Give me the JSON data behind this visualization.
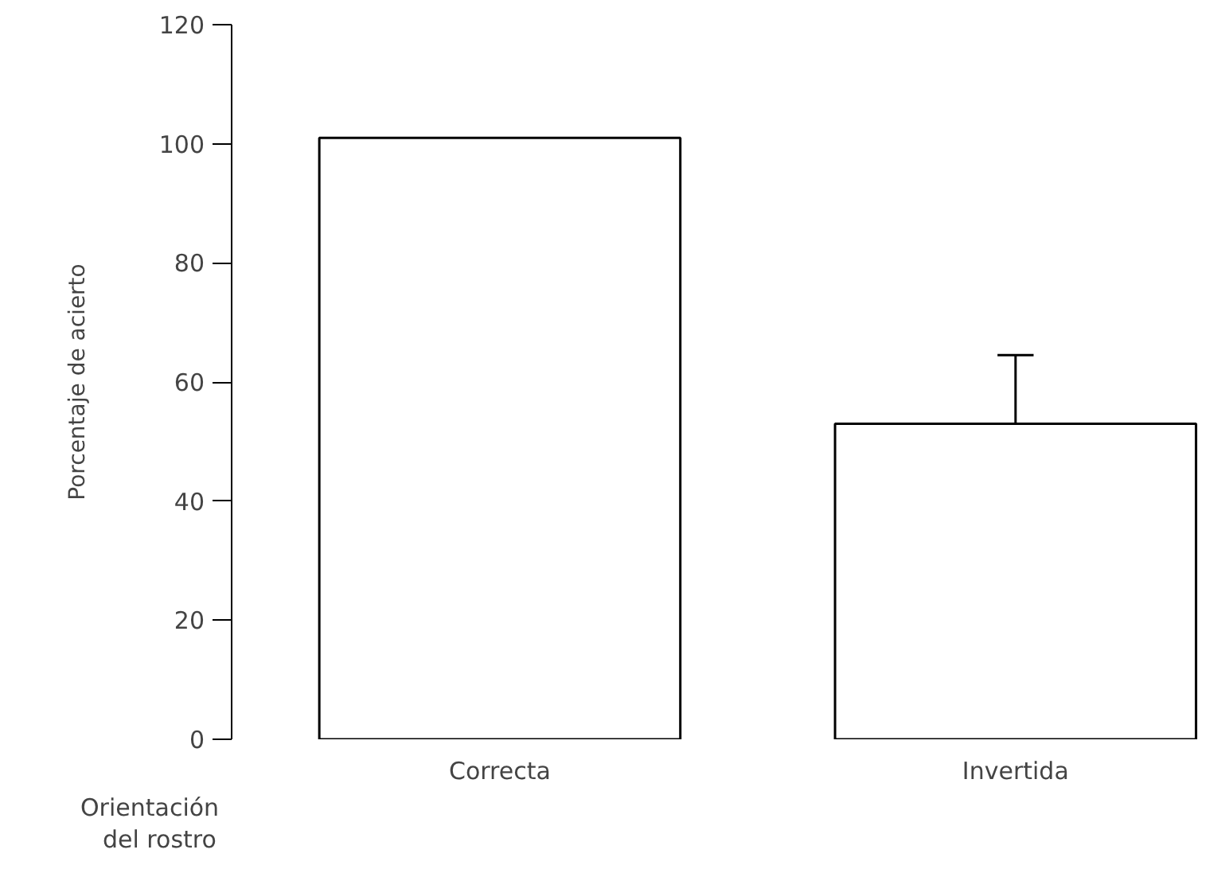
{
  "chart_data": {
    "type": "bar",
    "categories": [
      "Correcta",
      "Invertida"
    ],
    "values": [
      101,
      53
    ],
    "errors": [
      null,
      [
        53,
        64.5
      ]
    ],
    "color": "#ffffff",
    "ylabel": "Porcentaje de acierto",
    "xlabel": "Orientación\ndel rostro",
    "ylim": [
      0,
      120
    ],
    "yticks": [
      0,
      20,
      40,
      60,
      80,
      100,
      120
    ],
    "grid": false
  }
}
